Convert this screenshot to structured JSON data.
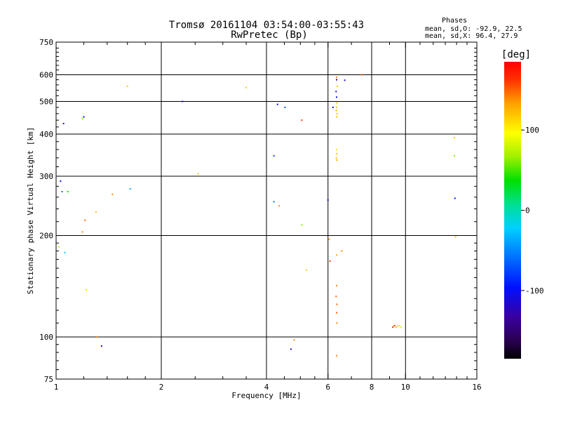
{
  "chart_data": {
    "type": "scatter",
    "title": "Tromsø 20161104 03:54:00-03:55:43",
    "subtitle": "RwPretec (Bp)",
    "xlabel": "Frequency [MHz]",
    "ylabel": "Stationary phase Virtual Height [km]",
    "x_scale": "log",
    "y_scale": "log",
    "xlim": [
      1,
      16
    ],
    "ylim": [
      75,
      750
    ],
    "x_ticks": [
      1,
      2,
      4,
      6,
      8,
      10,
      16
    ],
    "x_tick_labels": [
      "1",
      "2",
      "4",
      "6",
      "8",
      "10",
      "16"
    ],
    "x_minor_ticks": [
      1.2,
      1.4,
      1.6,
      1.8,
      2.5,
      3,
      3.5,
      4.5,
      5,
      5.5,
      7,
      9,
      11,
      12,
      13,
      14,
      15
    ],
    "x_major_grid": [
      2,
      4,
      6,
      8,
      10
    ],
    "y_ticks": [
      75,
      100,
      200,
      300,
      400,
      500,
      600,
      750
    ],
    "y_tick_labels": [
      "75",
      "100",
      "200",
      "300",
      "400",
      "500",
      "600",
      "750"
    ],
    "y_minor_ticks": [
      80,
      85,
      90,
      95,
      110,
      120,
      130,
      140,
      150,
      160,
      170,
      180,
      190,
      220,
      240,
      260,
      280,
      320,
      340,
      360,
      380,
      420,
      440,
      460,
      480,
      520,
      540,
      560,
      580,
      620,
      640,
      660,
      680,
      700,
      720
    ],
    "y_major_grid": [
      100,
      200,
      300,
      400,
      500,
      600
    ],
    "grid": true,
    "color_variable": "phase",
    "colorbar": {
      "unit_label": "[deg]",
      "min": -185,
      "max": 185,
      "ticks": [
        100,
        0,
        -100
      ],
      "tick_labels": [
        "100",
        "0",
        "-100"
      ]
    },
    "phases": {
      "heading": "Phases",
      "line_o": "mean, sd,O: -92.9, 22.5",
      "line_x": "mean, sd,X:  96.4, 27.9"
    },
    "series": [
      {
        "points": [
          [
            1.05,
            430,
            -120
          ],
          [
            1.03,
            290,
            -100
          ],
          [
            1.08,
            270,
            40
          ],
          [
            1.04,
            270,
            -60
          ],
          [
            1.02,
            185,
            80
          ],
          [
            1.06,
            178,
            -20
          ],
          [
            1.2,
            450,
            -100
          ],
          [
            1.19,
            445,
            60
          ],
          [
            1.21,
            222,
            150
          ],
          [
            1.19,
            205,
            140
          ],
          [
            1.3,
            235,
            120
          ],
          [
            1.45,
            265,
            140
          ],
          [
            1.22,
            138,
            80
          ],
          [
            1.31,
            100,
            140
          ],
          [
            1.35,
            94,
            -110
          ],
          [
            1.6,
            555,
            120
          ],
          [
            1.63,
            275,
            -40
          ],
          [
            2.3,
            500,
            -120
          ],
          [
            3.5,
            550,
            120
          ],
          [
            4.3,
            490,
            -100
          ],
          [
            4.2,
            345,
            -80
          ],
          [
            4.2,
            252,
            -60
          ],
          [
            4.35,
            245,
            140
          ],
          [
            4.7,
            92,
            -120
          ],
          [
            4.8,
            98,
            140
          ],
          [
            5.05,
            440,
            160
          ],
          [
            5.05,
            215,
            60
          ],
          [
            5.2,
            158,
            120
          ],
          [
            2.55,
            305,
            120
          ],
          [
            4.52,
            480,
            -70
          ],
          [
            6,
            255,
            -100
          ],
          [
            6.05,
            195,
            130
          ],
          [
            6.08,
            168,
            160
          ],
          [
            6.35,
            590,
            140
          ],
          [
            6.35,
            580,
            -150
          ],
          [
            6.38,
            555,
            120
          ],
          [
            6.33,
            535,
            -110
          ],
          [
            6.35,
            515,
            -100
          ],
          [
            6.36,
            495,
            120
          ],
          [
            6.35,
            480,
            120
          ],
          [
            6.34,
            470,
            130
          ],
          [
            6.37,
            460,
            120
          ],
          [
            6.35,
            450,
            120
          ],
          [
            6.35,
            360,
            110
          ],
          [
            6.36,
            350,
            120
          ],
          [
            6.34,
            340,
            120
          ],
          [
            6.36,
            335,
            130
          ],
          [
            6.2,
            480,
            -100
          ],
          [
            6.57,
            180,
            140
          ],
          [
            6.35,
            175,
            130
          ],
          [
            6.35,
            142,
            140
          ],
          [
            6.33,
            132,
            150
          ],
          [
            6.36,
            125,
            150
          ],
          [
            6.35,
            118,
            150
          ],
          [
            6.36,
            110,
            140
          ],
          [
            6.35,
            88,
            140
          ],
          [
            6.7,
            578,
            -110
          ],
          [
            7.5,
            600,
            150
          ],
          [
            9.2,
            107,
            170
          ],
          [
            9.3,
            108,
            165
          ],
          [
            9.4,
            107,
            120
          ],
          [
            9.5,
            108,
            110
          ],
          [
            9.6,
            108,
            90
          ],
          [
            9.7,
            107,
            80
          ],
          [
            13.8,
            390,
            120
          ],
          [
            13.8,
            345,
            60
          ],
          [
            13.85,
            258,
            -100
          ],
          [
            13.9,
            198,
            120
          ]
        ]
      }
    ]
  }
}
